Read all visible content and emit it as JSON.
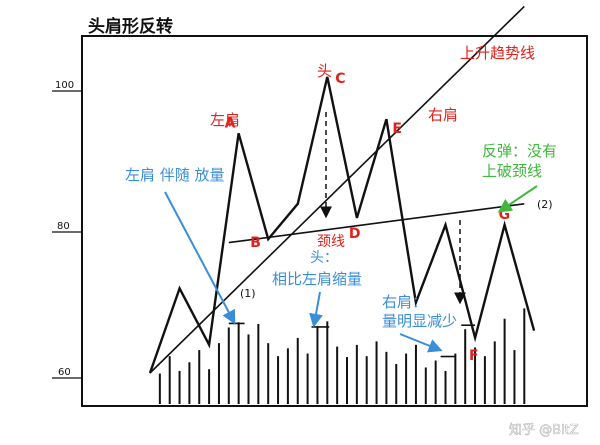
{
  "chart_data": {
    "type": "line",
    "title": "头肩形反转",
    "y_ticks": [
      "100",
      "80",
      "60"
    ],
    "ylim": [
      55,
      110
    ],
    "price": {
      "name": "",
      "x": [
        0,
        3,
        6,
        9,
        12,
        15,
        18,
        21,
        24,
        27,
        30,
        33,
        36,
        39
      ],
      "y": [
        60,
        72,
        64,
        94,
        79,
        84,
        102,
        82,
        96,
        70,
        81,
        65,
        81,
        66
      ]
    },
    "point_labels": [
      {
        "label": "A",
        "x": 9
      },
      {
        "label": "B",
        "x": 12
      },
      {
        "label": "C",
        "x": 18
      },
      {
        "label": "D",
        "x": 21
      },
      {
        "label": "E",
        "x": 24
      },
      {
        "label": "F",
        "x": 33
      },
      {
        "label": "G",
        "x": 36
      }
    ],
    "volume_bars": [
      {
        "x": 1,
        "v": 35
      },
      {
        "x": 2,
        "v": 55
      },
      {
        "x": 3,
        "v": 38
      },
      {
        "x": 4,
        "v": 48
      },
      {
        "x": 5,
        "v": 62
      },
      {
        "x": 6,
        "v": 40
      },
      {
        "x": 7,
        "v": 70
      },
      {
        "x": 8,
        "v": 88
      },
      {
        "x": 9,
        "v": 94
      },
      {
        "x": 10,
        "v": 80
      },
      {
        "x": 11,
        "v": 92
      },
      {
        "x": 12,
        "v": 70
      },
      {
        "x": 13,
        "v": 55
      },
      {
        "x": 14,
        "v": 64
      },
      {
        "x": 15,
        "v": 76
      },
      {
        "x": 16,
        "v": 58
      },
      {
        "x": 17,
        "v": 88
      },
      {
        "x": 18,
        "v": 95
      },
      {
        "x": 19,
        "v": 66
      },
      {
        "x": 20,
        "v": 54
      },
      {
        "x": 21,
        "v": 68
      },
      {
        "x": 22,
        "v": 55
      },
      {
        "x": 23,
        "v": 72
      },
      {
        "x": 24,
        "v": 60
      },
      {
        "x": 25,
        "v": 46
      },
      {
        "x": 26,
        "v": 58
      },
      {
        "x": 27,
        "v": 68
      },
      {
        "x": 28,
        "v": 42
      },
      {
        "x": 29,
        "v": 50
      },
      {
        "x": 30,
        "v": 38
      },
      {
        "x": 31,
        "v": 58
      },
      {
        "x": 32,
        "v": 86
      },
      {
        "x": 33,
        "v": 65
      },
      {
        "x": 34,
        "v": 55
      },
      {
        "x": 35,
        "v": 72
      },
      {
        "x": 36,
        "v": 98
      },
      {
        "x": 37,
        "v": 62
      },
      {
        "x": 38,
        "v": 110
      }
    ],
    "volume_max": 115,
    "lines": {
      "uptrend": {
        "label": "上升趋势线",
        "from": [
          0,
          60
        ],
        "to": [
          38,
          112
        ],
        "marker": "(1)"
      },
      "neckline": {
        "label": "颈线",
        "from": [
          8,
          78.5
        ],
        "to": [
          38,
          84
        ],
        "marker": "(2)"
      }
    },
    "annotations": {
      "head": "头",
      "left_shoulder": "左肩",
      "right_shoulder": "右肩",
      "left_shoulder_volume": "左肩 伴随 放量",
      "head_volume": [
        "头：",
        "相比左肩缩量"
      ],
      "right_shoulder_volume": [
        "右肩：",
        "量明显减少"
      ],
      "rebound": [
        "反弹：没有",
        "上破颈线"
      ]
    },
    "watermark": "知乎 @BitZ",
    "colors": {
      "price_line": "#111111",
      "red_text": "#e0221e",
      "blue_note": "#3a8ed8",
      "green_note": "#3fb83c",
      "axis": "#111111"
    }
  }
}
